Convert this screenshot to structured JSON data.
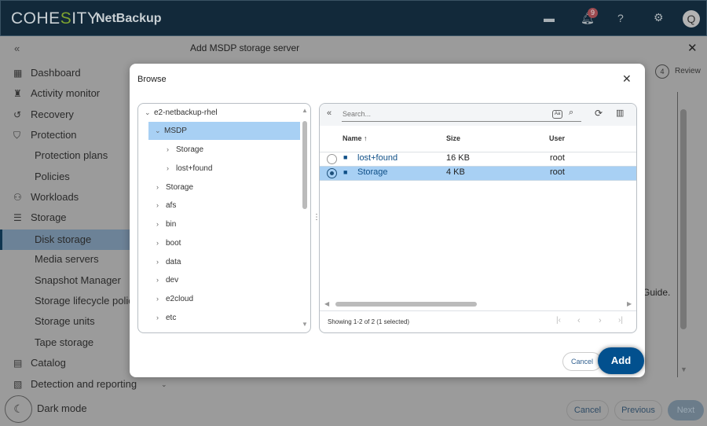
{
  "header": {
    "brand_left": "COHE",
    "brand_mid": "S",
    "brand_right": "ITY",
    "product": "NetBackup",
    "notification_count": "9",
    "avatar_letter": "Q"
  },
  "page": {
    "title": "Add MSDP storage server",
    "step_number": "4",
    "step_label": "Review",
    "guide_text": "Guide.",
    "cancel": "Cancel",
    "previous": "Previous",
    "next": "Next"
  },
  "sidebar": {
    "items": [
      {
        "label": "Dashboard",
        "icon": "dashboard-icon"
      },
      {
        "label": "Activity monitor",
        "icon": "activity-icon"
      },
      {
        "label": "Recovery",
        "icon": "recovery-icon"
      },
      {
        "label": "Protection",
        "icon": "shield-icon"
      },
      {
        "label": "Protection plans",
        "sub": true
      },
      {
        "label": "Policies",
        "sub": true
      },
      {
        "label": "Workloads",
        "icon": "workloads-icon"
      },
      {
        "label": "Storage",
        "icon": "database-icon"
      },
      {
        "label": "Disk storage",
        "sub": true,
        "active": true
      },
      {
        "label": "Media servers",
        "sub": true
      },
      {
        "label": "Snapshot Manager",
        "sub": true
      },
      {
        "label": "Storage lifecycle policies",
        "sub": true
      },
      {
        "label": "Storage units",
        "sub": true
      },
      {
        "label": "Tape storage",
        "sub": true
      },
      {
        "label": "Catalog",
        "icon": "catalog-icon"
      },
      {
        "label": "Detection and reporting",
        "icon": "report-icon"
      }
    ],
    "dark_mode": "Dark mode"
  },
  "dialog": {
    "title": "Browse",
    "add": "Add",
    "cancel": "Cancel",
    "tree": [
      {
        "label": "e2-netbackup-rhel",
        "level": 0,
        "expanded": true
      },
      {
        "label": "MSDP",
        "level": 1,
        "expanded": true,
        "selected": true
      },
      {
        "label": "Storage",
        "level": 2
      },
      {
        "label": "lost+found",
        "level": 2
      },
      {
        "label": "Storage",
        "level": 1
      },
      {
        "label": "afs",
        "level": 1
      },
      {
        "label": "bin",
        "level": 1
      },
      {
        "label": "boot",
        "level": 1
      },
      {
        "label": "data",
        "level": 1
      },
      {
        "label": "dev",
        "level": 1
      },
      {
        "label": "e2cloud",
        "level": 1
      },
      {
        "label": "etc",
        "level": 1
      }
    ],
    "search_placeholder": "Search...",
    "columns": {
      "name": "Name",
      "size": "Size",
      "user": "User"
    },
    "rows": [
      {
        "name": "lost+found",
        "size": "16 KB",
        "user": "root",
        "selected": false
      },
      {
        "name": "Storage",
        "size": "4 KB",
        "user": "root",
        "selected": true
      }
    ],
    "status": "Showing 1-2 of 2 (1 selected)"
  },
  "colors": {
    "header": "#12293a",
    "primary": "#02508e",
    "selected_row": "#a8d0f4"
  }
}
